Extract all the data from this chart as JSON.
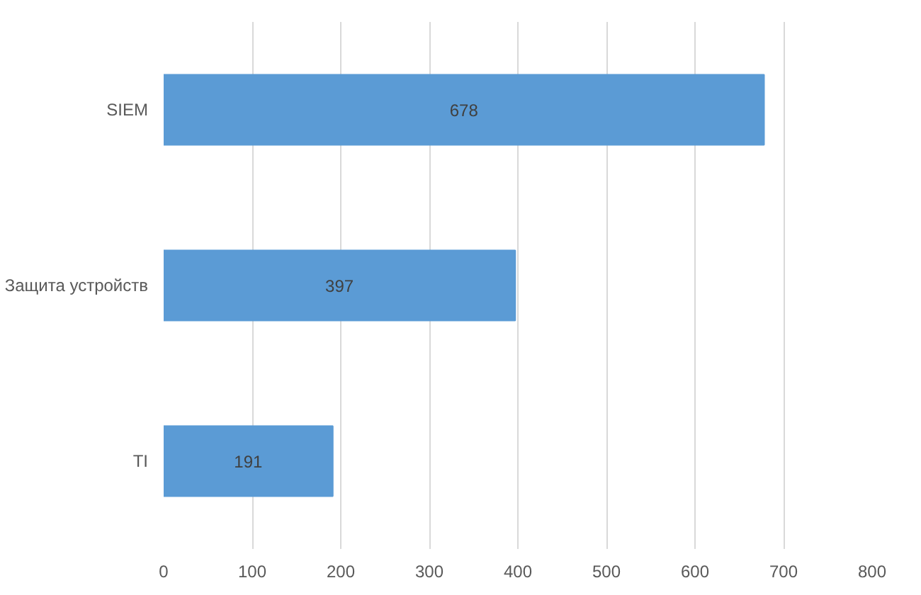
{
  "chart_data": {
    "type": "bar",
    "orientation": "horizontal",
    "categories": [
      "SIEM",
      "Защита устройств",
      "TI"
    ],
    "values": [
      678,
      397,
      191
    ],
    "color": "#5b9bd5",
    "xlim": [
      0,
      800
    ],
    "xticks": [
      0,
      100,
      200,
      300,
      400,
      500,
      600,
      700,
      800
    ],
    "grid": "x",
    "data_labels": true
  }
}
